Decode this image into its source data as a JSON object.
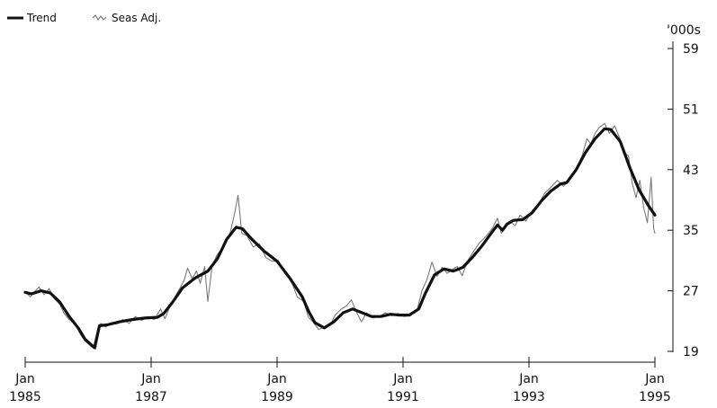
{
  "chart_data": {
    "type": "line",
    "ylabel": "'000s",
    "ylim": [
      19,
      59
    ],
    "yticks": [
      "19",
      "27",
      "35",
      "43",
      "51",
      "59"
    ],
    "xlim": [
      1985.0,
      1995.0
    ],
    "xticks": [
      {
        "month": "Jan",
        "year": "1985",
        "value": 1985
      },
      {
        "month": "Jan",
        "year": "1987",
        "value": 1987
      },
      {
        "month": "Jan",
        "year": "1989",
        "value": 1989
      },
      {
        "month": "Jan",
        "year": "1991",
        "value": 1991
      },
      {
        "month": "Jan",
        "year": "1993",
        "value": 1993
      },
      {
        "month": "Jan",
        "year": "1995",
        "value": 1995
      }
    ],
    "grid": false,
    "legend": {
      "placement": "top-left"
    },
    "series": [
      {
        "name": "Trend",
        "style": "solid-thick",
        "color": "#111111",
        "points": [
          [
            1985.0,
            26.8
          ],
          [
            1985.1,
            26.6
          ],
          [
            1985.25,
            27.0
          ],
          [
            1985.4,
            26.7
          ],
          [
            1985.55,
            25.5
          ],
          [
            1985.7,
            23.6
          ],
          [
            1985.85,
            22.0
          ],
          [
            1985.95,
            20.6
          ],
          [
            1986.1,
            19.5
          ],
          [
            1986.18,
            22.4
          ],
          [
            1986.3,
            22.5
          ],
          [
            1986.5,
            22.9
          ],
          [
            1986.7,
            23.2
          ],
          [
            1986.9,
            23.4
          ],
          [
            1987.1,
            23.5
          ],
          [
            1987.2,
            24.0
          ],
          [
            1987.35,
            25.6
          ],
          [
            1987.5,
            27.4
          ],
          [
            1987.7,
            28.7
          ],
          [
            1987.9,
            29.6
          ],
          [
            1988.05,
            31.2
          ],
          [
            1988.2,
            33.8
          ],
          [
            1988.35,
            35.4
          ],
          [
            1988.45,
            35.2
          ],
          [
            1988.6,
            33.8
          ],
          [
            1988.8,
            32.2
          ],
          [
            1989.0,
            30.9
          ],
          [
            1989.2,
            28.7
          ],
          [
            1989.4,
            26.2
          ],
          [
            1989.5,
            24.3
          ],
          [
            1989.6,
            22.8
          ],
          [
            1989.75,
            22.1
          ],
          [
            1989.9,
            22.9
          ],
          [
            1990.05,
            24.1
          ],
          [
            1990.2,
            24.6
          ],
          [
            1990.35,
            24.1
          ],
          [
            1990.5,
            23.6
          ],
          [
            1990.65,
            23.6
          ],
          [
            1990.8,
            23.9
          ],
          [
            1990.95,
            23.8
          ],
          [
            1991.1,
            23.8
          ],
          [
            1991.25,
            24.6
          ],
          [
            1991.35,
            26.6
          ],
          [
            1991.5,
            29.1
          ],
          [
            1991.65,
            29.9
          ],
          [
            1991.8,
            29.6
          ],
          [
            1991.95,
            30.1
          ],
          [
            1992.1,
            31.4
          ],
          [
            1992.25,
            32.9
          ],
          [
            1992.4,
            34.6
          ],
          [
            1992.5,
            35.7
          ],
          [
            1992.58,
            35.0
          ],
          [
            1992.65,
            35.8
          ],
          [
            1992.75,
            36.3
          ],
          [
            1992.9,
            36.4
          ],
          [
            1993.05,
            37.3
          ],
          [
            1993.2,
            38.9
          ],
          [
            1993.35,
            40.2
          ],
          [
            1993.5,
            41.1
          ],
          [
            1993.6,
            41.3
          ],
          [
            1993.75,
            43.0
          ],
          [
            1993.9,
            45.3
          ],
          [
            1994.05,
            47.1
          ],
          [
            1994.2,
            48.4
          ],
          [
            1994.3,
            48.3
          ],
          [
            1994.45,
            46.7
          ],
          [
            1994.6,
            43.3
          ],
          [
            1994.75,
            40.3
          ],
          [
            1994.9,
            38.2
          ],
          [
            1995.0,
            37.0
          ]
        ]
      },
      {
        "name": "Seas Adj.",
        "style": "thin-grey",
        "color": "#7a7a7a",
        "points": [
          [
            1985.0,
            26.9
          ],
          [
            1985.08,
            26.2
          ],
          [
            1985.15,
            26.9
          ],
          [
            1985.22,
            27.5
          ],
          [
            1985.3,
            26.5
          ],
          [
            1985.38,
            27.3
          ],
          [
            1985.45,
            26.1
          ],
          [
            1985.55,
            25.2
          ],
          [
            1985.62,
            24.0
          ],
          [
            1985.7,
            23.2
          ],
          [
            1985.8,
            22.5
          ],
          [
            1985.88,
            21.2
          ],
          [
            1985.95,
            20.4
          ],
          [
            1986.05,
            19.6
          ],
          [
            1986.12,
            19.3
          ],
          [
            1986.2,
            22.7
          ],
          [
            1986.28,
            22.2
          ],
          [
            1986.36,
            22.8
          ],
          [
            1986.45,
            22.6
          ],
          [
            1986.55,
            23.2
          ],
          [
            1986.65,
            22.7
          ],
          [
            1986.75,
            23.6
          ],
          [
            1986.85,
            23.1
          ],
          [
            1986.95,
            23.6
          ],
          [
            1987.05,
            23.2
          ],
          [
            1987.15,
            24.6
          ],
          [
            1987.22,
            23.3
          ],
          [
            1987.3,
            25.0
          ],
          [
            1987.42,
            26.8
          ],
          [
            1987.52,
            28.3
          ],
          [
            1987.58,
            30.0
          ],
          [
            1987.65,
            28.6
          ],
          [
            1987.72,
            29.6
          ],
          [
            1987.78,
            28.0
          ],
          [
            1987.85,
            30.2
          ],
          [
            1987.9,
            25.6
          ],
          [
            1987.97,
            30.4
          ],
          [
            1988.05,
            31.8
          ],
          [
            1988.15,
            32.8
          ],
          [
            1988.25,
            34.5
          ],
          [
            1988.32,
            37.0
          ],
          [
            1988.38,
            39.6
          ],
          [
            1988.44,
            34.6
          ],
          [
            1988.52,
            34.3
          ],
          [
            1988.62,
            32.8
          ],
          [
            1988.72,
            33.2
          ],
          [
            1988.82,
            31.4
          ],
          [
            1988.92,
            30.9
          ],
          [
            1989.02,
            31.0
          ],
          [
            1989.12,
            29.3
          ],
          [
            1989.22,
            28.4
          ],
          [
            1989.32,
            26.2
          ],
          [
            1989.42,
            25.6
          ],
          [
            1989.5,
            23.5
          ],
          [
            1989.58,
            22.8
          ],
          [
            1989.66,
            21.9
          ],
          [
            1989.75,
            22.2
          ],
          [
            1989.84,
            22.4
          ],
          [
            1989.92,
            23.8
          ],
          [
            1990.02,
            24.6
          ],
          [
            1990.1,
            25.0
          ],
          [
            1990.18,
            25.8
          ],
          [
            1990.26,
            24.2
          ],
          [
            1990.34,
            22.9
          ],
          [
            1990.42,
            24.1
          ],
          [
            1990.52,
            23.4
          ],
          [
            1990.62,
            23.6
          ],
          [
            1990.72,
            24.1
          ],
          [
            1990.82,
            23.7
          ],
          [
            1990.92,
            24.0
          ],
          [
            1991.02,
            23.6
          ],
          [
            1991.12,
            23.9
          ],
          [
            1991.22,
            24.4
          ],
          [
            1991.3,
            27.0
          ],
          [
            1991.38,
            28.5
          ],
          [
            1991.46,
            30.8
          ],
          [
            1991.54,
            28.9
          ],
          [
            1991.62,
            30.1
          ],
          [
            1991.7,
            29.3
          ],
          [
            1991.78,
            29.8
          ],
          [
            1991.86,
            30.2
          ],
          [
            1991.94,
            29.0
          ],
          [
            1992.02,
            30.9
          ],
          [
            1992.12,
            32.2
          ],
          [
            1992.22,
            33.4
          ],
          [
            1992.32,
            34.2
          ],
          [
            1992.42,
            35.3
          ],
          [
            1992.5,
            36.6
          ],
          [
            1992.56,
            34.6
          ],
          [
            1992.62,
            35.4
          ],
          [
            1992.7,
            36.2
          ],
          [
            1992.78,
            35.6
          ],
          [
            1992.86,
            37.0
          ],
          [
            1992.95,
            36.2
          ],
          [
            1993.05,
            37.6
          ],
          [
            1993.15,
            38.4
          ],
          [
            1993.25,
            39.9
          ],
          [
            1993.35,
            40.7
          ],
          [
            1993.45,
            41.6
          ],
          [
            1993.55,
            40.8
          ],
          [
            1993.65,
            41.8
          ],
          [
            1993.75,
            43.0
          ],
          [
            1993.85,
            45.0
          ],
          [
            1993.92,
            47.1
          ],
          [
            1993.98,
            46.4
          ],
          [
            1994.05,
            47.8
          ],
          [
            1994.12,
            48.6
          ],
          [
            1994.2,
            49.1
          ],
          [
            1994.28,
            47.8
          ],
          [
            1994.36,
            48.8
          ],
          [
            1994.44,
            47.2
          ],
          [
            1994.52,
            45.2
          ],
          [
            1994.58,
            44.8
          ],
          [
            1994.64,
            41.2
          ],
          [
            1994.7,
            39.3
          ],
          [
            1994.76,
            41.6
          ],
          [
            1994.82,
            38.0
          ],
          [
            1994.88,
            36.0
          ],
          [
            1994.94,
            42.0
          ],
          [
            1994.98,
            35.2
          ],
          [
            1995.0,
            34.6
          ]
        ]
      }
    ]
  }
}
